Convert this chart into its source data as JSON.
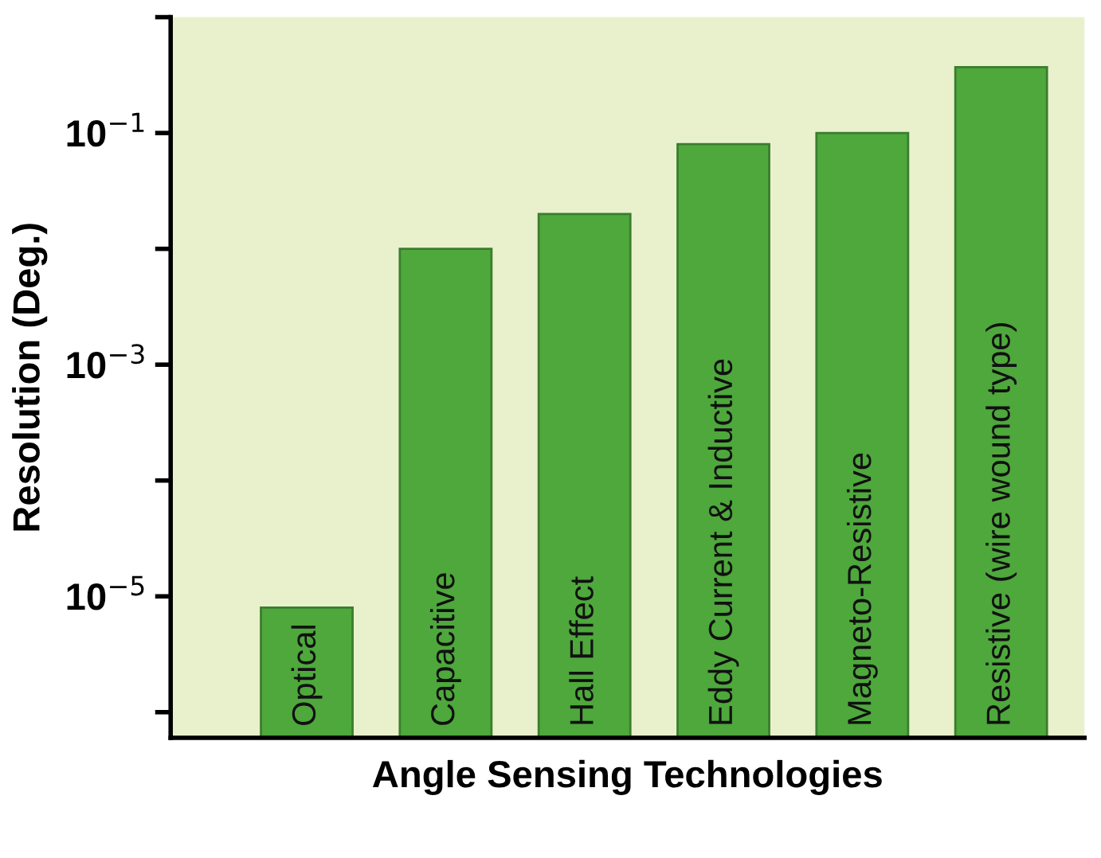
{
  "chart_data": {
    "type": "bar",
    "xlabel": "Angle Sensing Technologies",
    "ylabel": "Resolution (Deg.)",
    "categories": [
      "Optical",
      "Capacitive",
      "Hall Effect",
      "Eddy Current & Inductive",
      "Magneto-Resistive",
      "Resistive (wire wound type)"
    ],
    "values": [
      8e-06,
      0.01,
      0.02,
      0.08,
      0.1,
      0.37
    ],
    "color": "#4ea83c",
    "log": true,
    "ylim": [
      6e-07,
      1
    ],
    "yticks": [
      {
        "value": 1,
        "label": null
      },
      {
        "value": 0.1,
        "label": "10$^{−1}$"
      },
      {
        "value": 0.01,
        "label": null
      },
      {
        "value": 0.001,
        "label": "10$^{−3}$"
      },
      {
        "value": 0.0001,
        "label": null
      },
      {
        "value": 1e-05,
        "label": "10$^{−5}$"
      },
      {
        "value": 1e-06,
        "label": null
      }
    ],
    "grid": false,
    "legend": false
  }
}
